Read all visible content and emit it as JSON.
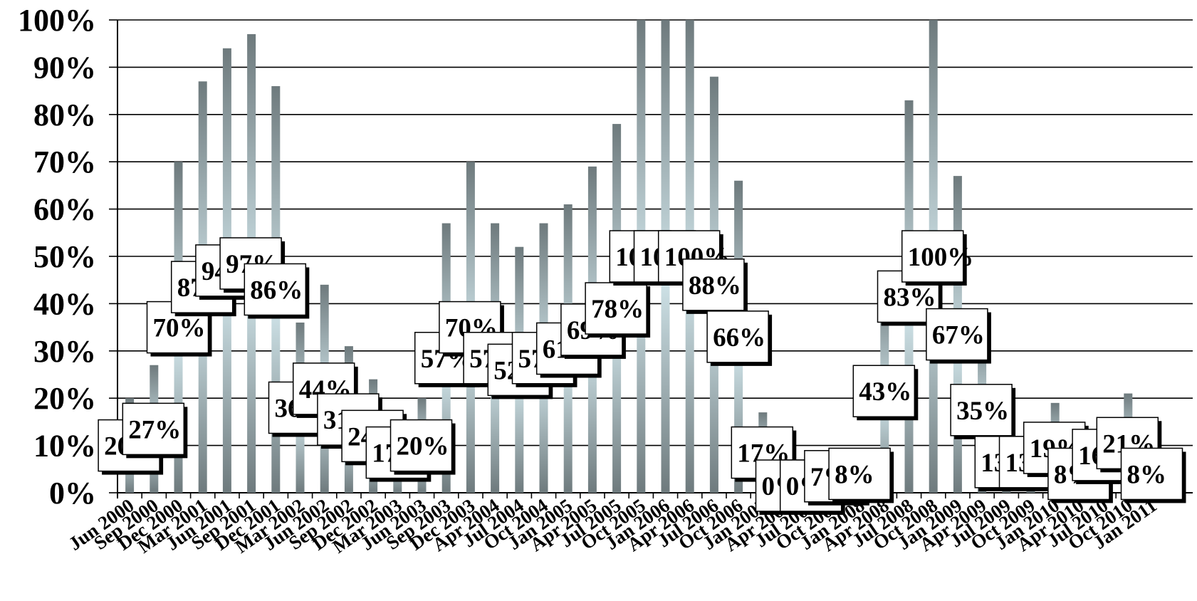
{
  "chart_data": {
    "type": "bar",
    "title": "",
    "xlabel": "",
    "ylabel": "",
    "ylim": [
      0,
      100
    ],
    "y_ticks": [
      "0%",
      "10%",
      "20%",
      "30%",
      "40%",
      "50%",
      "60%",
      "70%",
      "80%",
      "90%",
      "100%"
    ],
    "grid": "horizontal",
    "legend": "none",
    "bar_color": "#6e7a7d",
    "bar_highlight_color": "#cfe3e8",
    "grid_color": "#000000",
    "categories": [
      "Jun 2000",
      "Sep 2000",
      "Dec 2000",
      "Mar 2001",
      "Jun 2001",
      "Sep 2001",
      "Dec 2001",
      "Mar 2002",
      "Jun 2002",
      "Sep 2002",
      "Dec 2002",
      "Mar 2003",
      "Jun 2003",
      "Sep 2003",
      "Dec 2003",
      "Apr 2004",
      "Jul 2004",
      "Oct 2004",
      "Jan 2005",
      "Apr 2005",
      "Jul 2005",
      "Oct 2005",
      "Jan 2006",
      "Apr 2006",
      "Jul 2006",
      "Oct 2006",
      "Jan 2007",
      "Apr 2007",
      "Jul 2007",
      "Oct 2007",
      "Jan 2008",
      "Apr 2008",
      "Jul 2008",
      "Oct 2008",
      "Jan 2009",
      "Apr 2009",
      "Jul 2009",
      "Oct 2009",
      "Jan 2010",
      "Apr 2010",
      "Jul 2010",
      "Oct 2010",
      "Jan 2011"
    ],
    "values": [
      20,
      27,
      70,
      87,
      94,
      97,
      86,
      36,
      44,
      31,
      24,
      17,
      20,
      57,
      70,
      57,
      52,
      57,
      61,
      69,
      78,
      100,
      100,
      100,
      88,
      66,
      17,
      0,
      0,
      7,
      8,
      43,
      83,
      100,
      67,
      35,
      13,
      13,
      19,
      8,
      16,
      21,
      8
    ],
    "data_labels": [
      "20%",
      "27%",
      "70%",
      "87%",
      "94%",
      "97%",
      "86%",
      "36%",
      "44%",
      "31%",
      "24%",
      "17%",
      "20%",
      "57%",
      "70%",
      "57%",
      "52%",
      "57%",
      "61%",
      "69%",
      "78%",
      "100%",
      "100%",
      "100%",
      "88%",
      "66%",
      "17%",
      "0%",
      "0%",
      "7%",
      "8%",
      "43%",
      "83%",
      "100%",
      "67%",
      "35%",
      "13%",
      "13%",
      "19%",
      "8%",
      "16%",
      "21%",
      "8%"
    ]
  }
}
